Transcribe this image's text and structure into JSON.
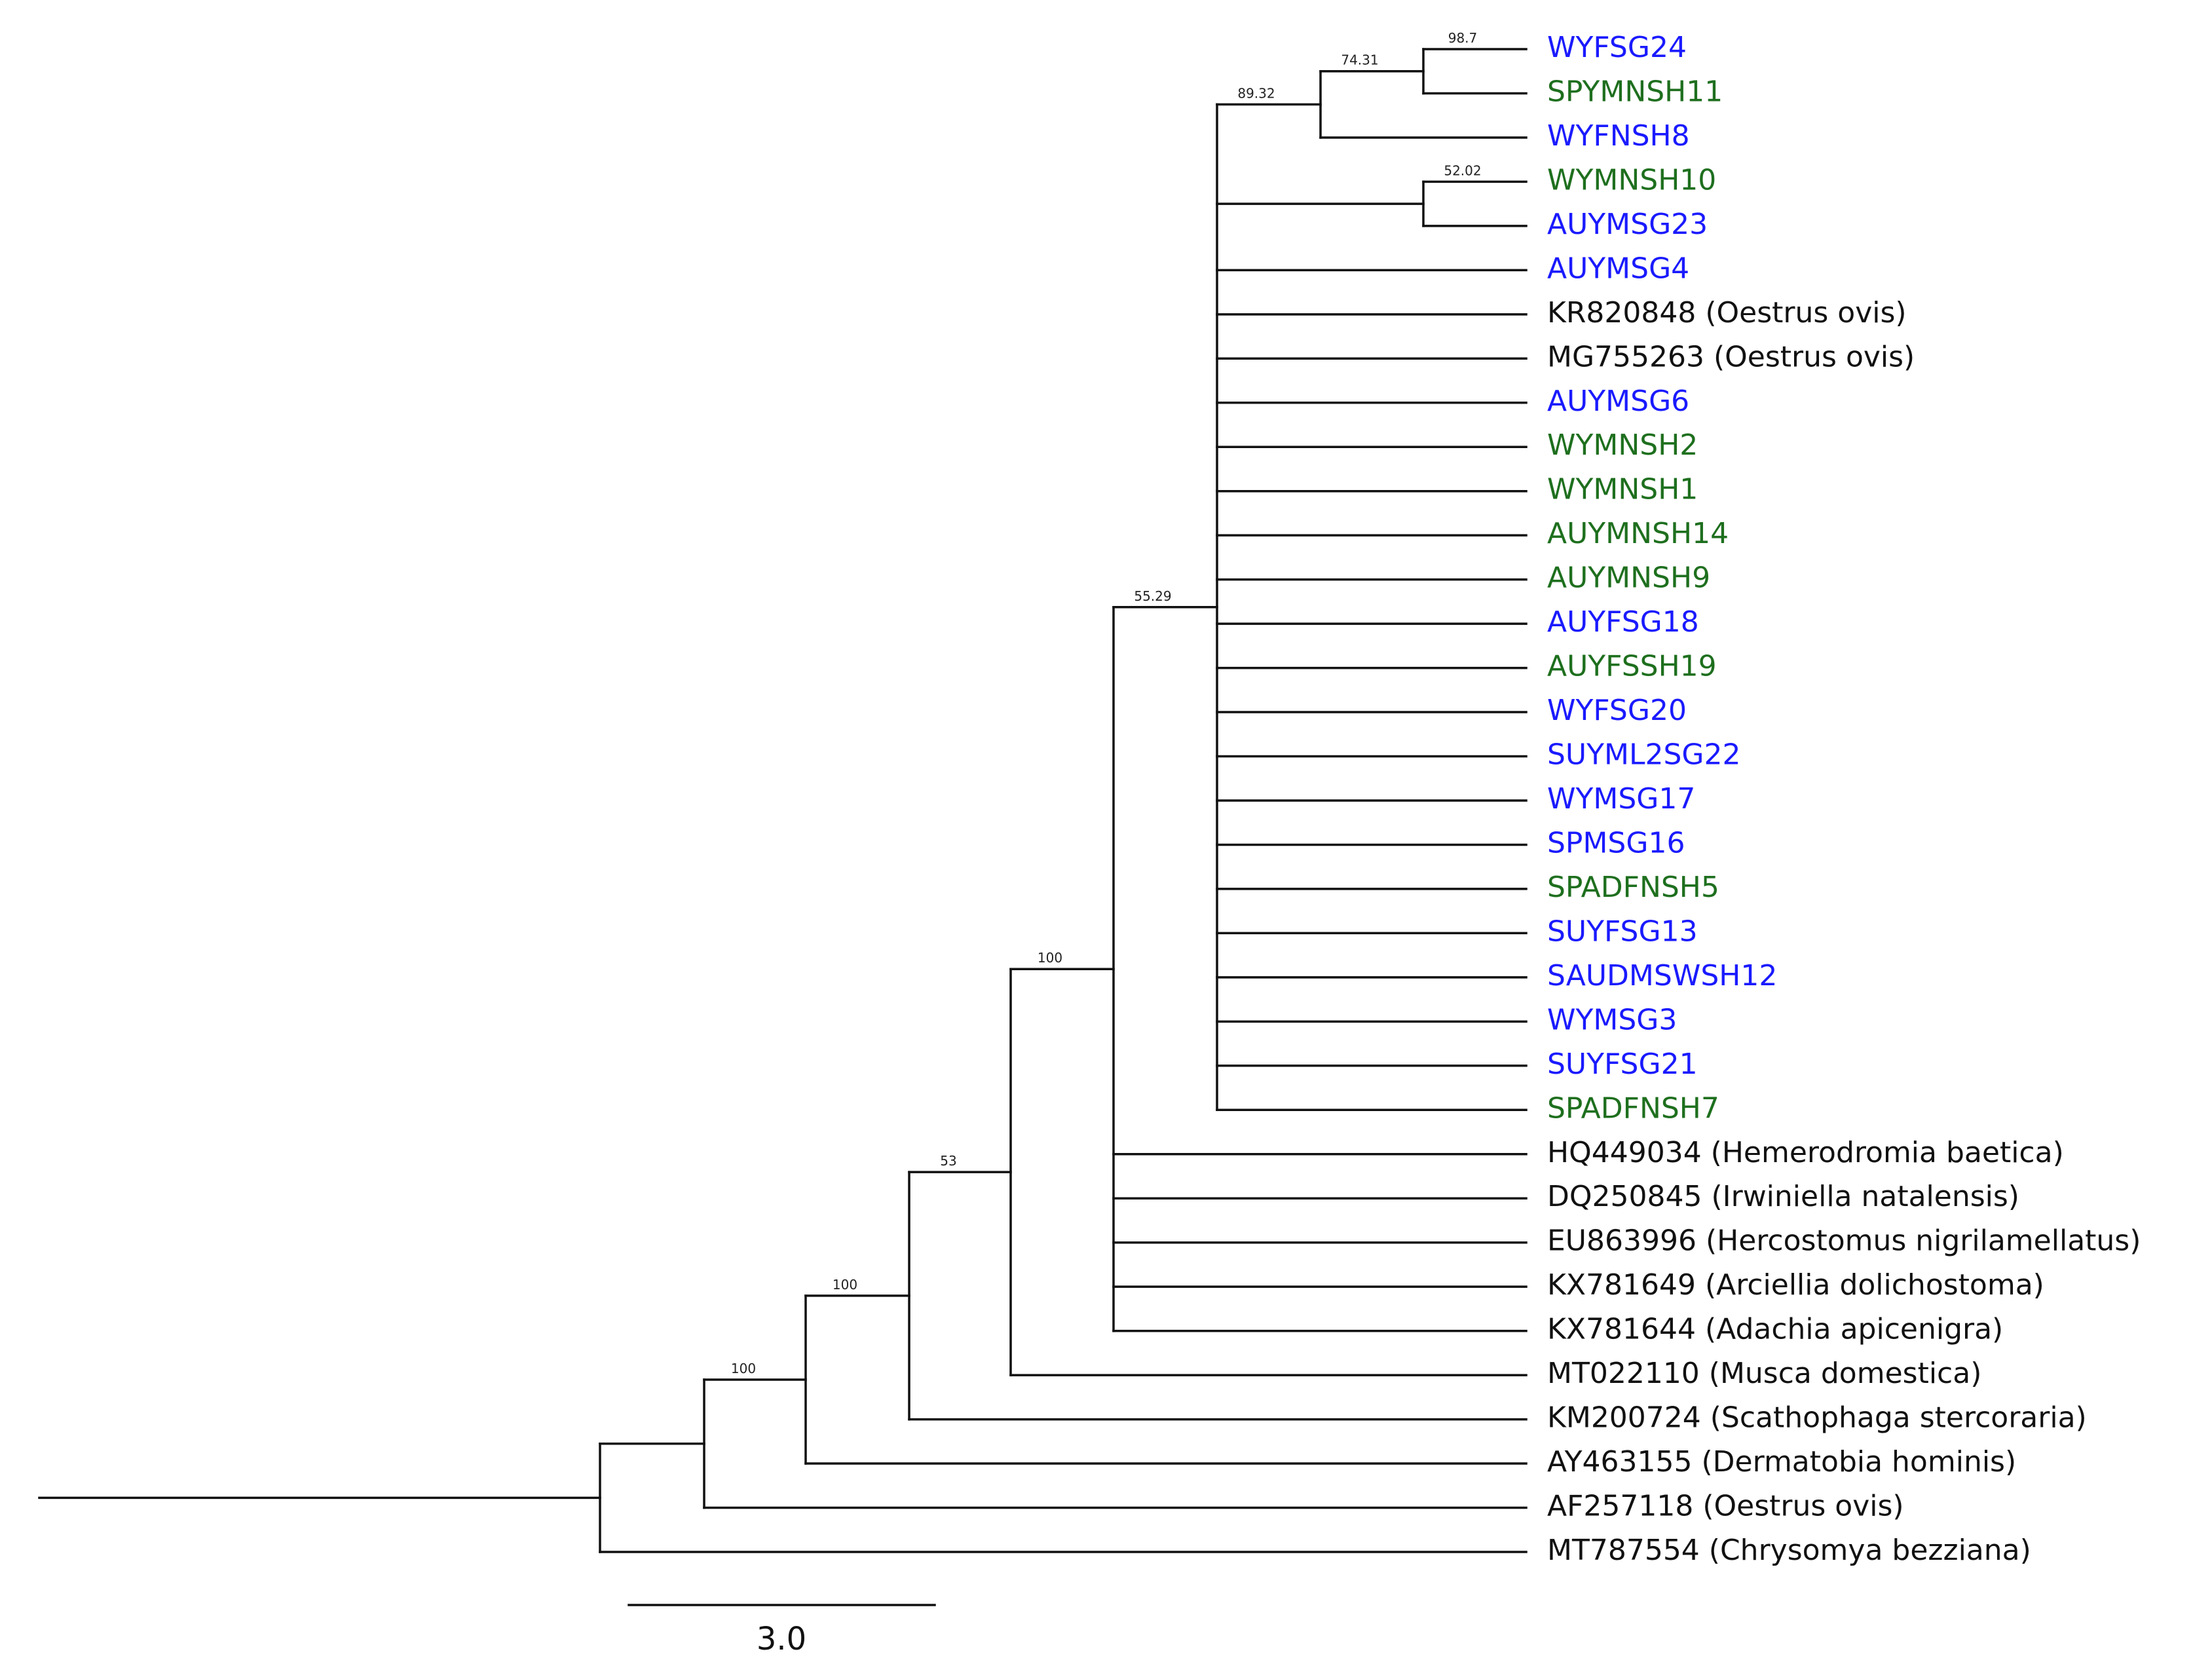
{
  "colors": {
    "blue": "#1a1aff",
    "green": "#1e6f1e",
    "black": "#111111"
  },
  "tips": [
    {
      "id": "t1",
      "label": "WYFSG24",
      "color": "blue"
    },
    {
      "id": "t2",
      "label": "SPYMNSH11",
      "color": "green"
    },
    {
      "id": "t3",
      "label": "WYFNSH8",
      "color": "blue"
    },
    {
      "id": "t4",
      "label": "WYMNSH10",
      "color": "green"
    },
    {
      "id": "t5",
      "label": "AUYMSG23",
      "color": "blue"
    },
    {
      "id": "t6",
      "label": "AUYMSG4",
      "color": "blue"
    },
    {
      "id": "t7",
      "label": "KR820848 (Oestrus ovis)",
      "color": "black"
    },
    {
      "id": "t8",
      "label": "MG755263 (Oestrus ovis)",
      "color": "black"
    },
    {
      "id": "t9",
      "label": "AUYMSG6",
      "color": "blue"
    },
    {
      "id": "t10",
      "label": "WYMNSH2",
      "color": "green"
    },
    {
      "id": "t11",
      "label": "WYMNSH1",
      "color": "green"
    },
    {
      "id": "t12",
      "label": "AUYMNSH14",
      "color": "green"
    },
    {
      "id": "t13",
      "label": "AUYMNSH9",
      "color": "green"
    },
    {
      "id": "t14",
      "label": "AUYFSG18",
      "color": "blue"
    },
    {
      "id": "t15",
      "label": "AUYFSSH19",
      "color": "green"
    },
    {
      "id": "t16",
      "label": "WYFSG20",
      "color": "blue"
    },
    {
      "id": "t17",
      "label": "SUYML2SG22",
      "color": "blue"
    },
    {
      "id": "t18",
      "label": "WYMSG17",
      "color": "blue"
    },
    {
      "id": "t19",
      "label": "SPMSG16",
      "color": "blue"
    },
    {
      "id": "t20",
      "label": "SPADFNSH5",
      "color": "green"
    },
    {
      "id": "t21",
      "label": "SUYFSG13",
      "color": "blue"
    },
    {
      "id": "t22",
      "label": "SAUDMSWSH12",
      "color": "blue"
    },
    {
      "id": "t23",
      "label": "WYMSG3",
      "color": "blue"
    },
    {
      "id": "t24",
      "label": "SUYFSG21",
      "color": "blue"
    },
    {
      "id": "t25",
      "label": "SPADFNSH7",
      "color": "green"
    },
    {
      "id": "t26",
      "label": "HQ449034 (Hemerodromia baetica)",
      "color": "black"
    },
    {
      "id": "t27",
      "label": "DQ250845 (Irwiniella natalensis)",
      "color": "black"
    },
    {
      "id": "t28",
      "label": "EU863996 (Hercostomus nigrilamellatus)",
      "color": "black"
    },
    {
      "id": "t29",
      "label": "KX781649 (Arciellia dolichostoma)",
      "color": "black"
    },
    {
      "id": "t30",
      "label": "KX781644 (Adachia apicenigra)",
      "color": "black"
    },
    {
      "id": "t31",
      "label": "MT022110 (Musca domestica)",
      "color": "black"
    },
    {
      "id": "t32",
      "label": "KM200724 (Scathophaga stercoraria)",
      "color": "black"
    },
    {
      "id": "t33",
      "label": "AY463155 (Dermatobia hominis)",
      "color": "black"
    },
    {
      "id": "t34",
      "label": "AF257118 (Oestrus ovis)",
      "color": "black"
    },
    {
      "id": "t35",
      "label": "MT787554 (Chrysomya bezziana)",
      "color": "black"
    }
  ],
  "nodes": [
    {
      "id": "root",
      "children": [
        "n100a",
        "t35"
      ],
      "support": ""
    },
    {
      "id": "n100a",
      "children": [
        "n100b",
        "t34"
      ],
      "support": "100"
    },
    {
      "id": "n100b",
      "children": [
        "n53",
        "t33"
      ],
      "support": "100"
    },
    {
      "id": "n53",
      "children": [
        "n100c",
        "t32"
      ],
      "support": "53"
    },
    {
      "id": "n100c",
      "children": [
        "n5529",
        "t31"
      ],
      "support": "100"
    },
    {
      "id": "n5529",
      "children": [
        "n8932",
        "t26",
        "t27",
        "t28",
        "t29",
        "t30"
      ],
      "support": "55.29"
    },
    {
      "id": "n8932",
      "children": [
        "n7431",
        "n5202",
        "t6",
        "t7",
        "t8",
        "t9",
        "t10",
        "t11",
        "t12",
        "t13",
        "t14",
        "t15",
        "t16",
        "t17",
        "t18",
        "t19",
        "t20",
        "t21",
        "t22",
        "t23",
        "t24",
        "t25"
      ],
      "support": "89.32"
    },
    {
      "id": "n7431",
      "children": [
        "n987",
        "t3"
      ],
      "support": "74.31"
    },
    {
      "id": "n987",
      "children": [
        "t1",
        "t2"
      ],
      "support": "98.7"
    },
    {
      "id": "n5202",
      "children": [
        "t4",
        "t5"
      ],
      "support": "52.02"
    }
  ],
  "scale_bar": {
    "label": "3.0"
  }
}
